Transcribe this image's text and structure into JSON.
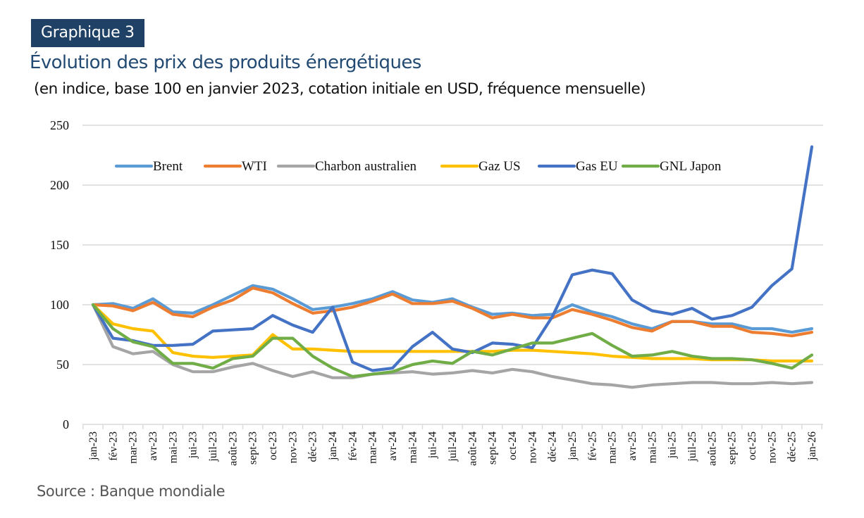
{
  "header": {
    "badge": "Graphique 3",
    "title": "Évolution des prix des produits énergétiques",
    "subtitle": "(en indice, base 100 en janvier 2023, cotation initiale en USD, fréquence mensuelle)"
  },
  "footer": {
    "source": "Source : Banque mondiale"
  },
  "chart_data": {
    "type": "line",
    "title": "Évolution des prix des produits énergétiques",
    "subtitle": "(en indice, base 100 en janvier 2023, cotation initiale en USD, fréquence mensuelle)",
    "xlabel": "",
    "ylabel": "",
    "ylim": [
      0,
      250
    ],
    "yticks": [
      0,
      50,
      100,
      150,
      200,
      250
    ],
    "grid": true,
    "legend_position": "top",
    "categories": [
      "jan-23",
      "fév-23",
      "mar-23",
      "avr-23",
      "mai-23",
      "jui-23",
      "juil-23",
      "août-23",
      "sept-23",
      "oct-23",
      "nov-23",
      "déc-23",
      "jan-24",
      "fév-24",
      "mar-24",
      "avr-24",
      "mai-24",
      "jui-24",
      "juil-24",
      "août-24",
      "sept-24",
      "oct-24",
      "nov-24",
      "déc-24",
      "jan-25",
      "fév-25",
      "mar-25",
      "avr-25",
      "mai-25",
      "jui-25",
      "juil-25",
      "août-25",
      "sept-25",
      "oct-25",
      "nov-25",
      "déc-25",
      "jan-26"
    ],
    "series": [
      {
        "name": "Brent",
        "color": "#5b9bd5",
        "values": [
          100,
          101,
          97,
          105,
          94,
          93,
          100,
          108,
          116,
          113,
          105,
          96,
          98,
          101,
          105,
          111,
          104,
          102,
          105,
          98,
          92,
          93,
          91,
          92,
          100,
          94,
          90,
          84,
          80,
          86,
          86,
          84,
          84,
          80,
          80,
          77,
          80
        ]
      },
      {
        "name": "WTI",
        "color": "#ed7d31",
        "values": [
          100,
          99,
          95,
          102,
          92,
          90,
          98,
          104,
          114,
          110,
          101,
          93,
          95,
          98,
          103,
          109,
          101,
          101,
          103,
          97,
          89,
          92,
          89,
          89,
          96,
          92,
          87,
          81,
          78,
          86,
          86,
          82,
          82,
          77,
          76,
          74,
          77
        ]
      },
      {
        "name": "Charbon australien",
        "color": "#a5a5a5",
        "values": [
          100,
          65,
          59,
          61,
          50,
          44,
          44,
          48,
          51,
          45,
          40,
          44,
          39,
          39,
          42,
          43,
          44,
          42,
          43,
          45,
          43,
          46,
          44,
          40,
          37,
          34,
          33,
          31,
          33,
          34,
          35,
          35,
          34,
          34,
          35,
          34,
          35
        ]
      },
      {
        "name": "Gaz US",
        "color": "#ffc000",
        "values": [
          100,
          84,
          80,
          78,
          60,
          57,
          56,
          57,
          58,
          75,
          63,
          63,
          62,
          61,
          61,
          61,
          61,
          61,
          61,
          61,
          61,
          62,
          62,
          61,
          60,
          59,
          57,
          56,
          55,
          55,
          55,
          54,
          54,
          54,
          53,
          53,
          53
        ]
      },
      {
        "name": "Gas EU",
        "color": "#4472c4",
        "values": [
          100,
          72,
          70,
          66,
          66,
          67,
          78,
          79,
          80,
          91,
          83,
          77,
          98,
          52,
          45,
          47,
          65,
          77,
          63,
          60,
          68,
          67,
          64,
          90,
          125,
          129,
          126,
          104,
          95,
          92,
          97,
          88,
          91,
          98,
          116,
          130,
          232
        ]
      },
      {
        "name": "GNL Japon",
        "color": "#70ad47",
        "values": [
          100,
          80,
          69,
          65,
          51,
          51,
          47,
          55,
          57,
          72,
          72,
          57,
          47,
          40,
          42,
          44,
          50,
          53,
          51,
          61,
          58,
          63,
          68,
          68,
          72,
          76,
          66,
          57,
          58,
          61,
          57,
          55,
          55,
          54,
          51,
          47,
          58
        ]
      }
    ]
  }
}
